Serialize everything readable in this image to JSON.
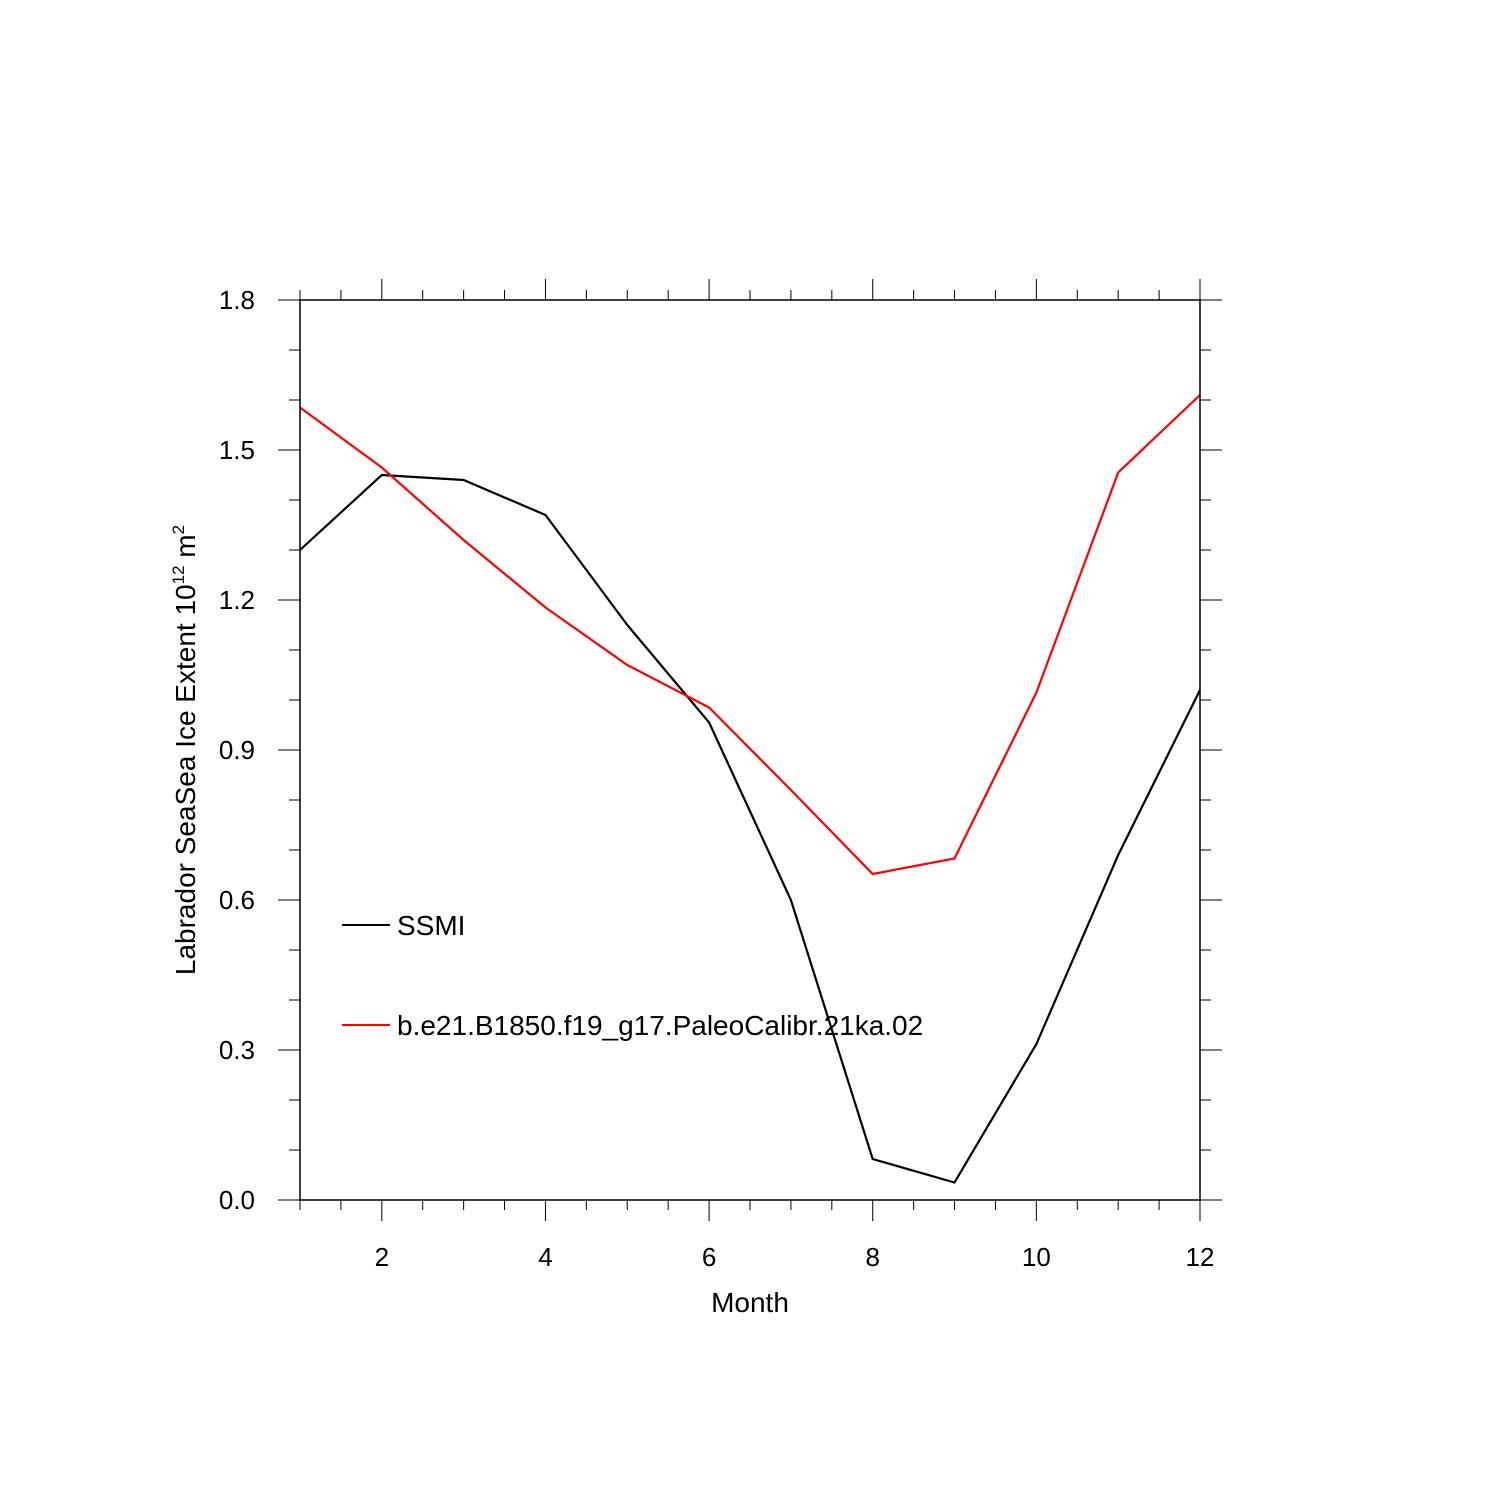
{
  "chart_data": {
    "type": "line",
    "xlabel": "Month",
    "ylabel": {
      "prefix": "Labrador SeaSea Ice Extent 10",
      "sup1": "12",
      "middle": " m",
      "sup2": "2"
    },
    "xlim": [
      1,
      12
    ],
    "ylim": [
      0,
      1.8
    ],
    "x_ticks": [
      2,
      4,
      6,
      8,
      10,
      12
    ],
    "x_tick_labels": [
      "2",
      "4",
      "6",
      "8",
      "10",
      "12"
    ],
    "y_ticks": [
      0,
      0.3,
      0.6,
      0.9,
      1.2,
      1.5,
      1.8
    ],
    "y_tick_labels": [
      "0.0",
      "0.3",
      "0.6",
      "0.9",
      "1.2",
      "1.5",
      "1.8"
    ],
    "x": [
      1,
      2,
      3,
      4,
      5,
      6,
      7,
      8,
      9,
      10,
      11,
      12
    ],
    "legend_placement": "lower-left",
    "series": [
      {
        "name": "SSMI",
        "color": "#000000",
        "values": [
          1.3,
          1.45,
          1.44,
          1.37,
          1.15,
          0.955,
          0.6,
          0.082,
          0.035,
          0.312,
          0.69,
          1.02
        ]
      },
      {
        "name": "b.e21.B1850.f19_g17.PaleoCalibr.21ka.02",
        "color": "#ff0000",
        "values": [
          1.585,
          1.465,
          1.32,
          1.185,
          1.07,
          0.985,
          0.82,
          0.652,
          0.683,
          1.015,
          1.455,
          1.61
        ]
      }
    ]
  }
}
